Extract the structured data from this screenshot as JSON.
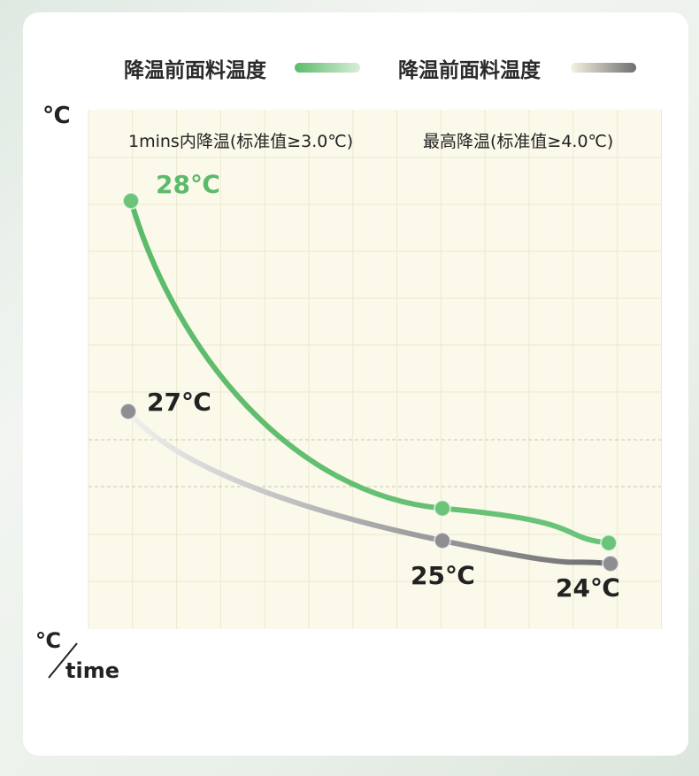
{
  "chart_data": {
    "type": "line",
    "legend": [
      {
        "label": "降温前面料温度",
        "color": "#5cbb6a"
      },
      {
        "label": "降温前面料温度",
        "color": "#6e6e72"
      }
    ],
    "legend_placement": "top",
    "annotations": [
      "1mins内降温(标准值≥3.0℃)",
      "最高降温(标准值≥4.0℃)"
    ],
    "ylabel": "℃",
    "xlabel": "℃/time",
    "xlabel_unit": "℃",
    "xlabel_text": "time",
    "grid": true,
    "series": [
      {
        "values": [
          28,
          25.5,
          24.9
        ],
        "labels": [
          "28℃",
          "",
          ""
        ],
        "color": "#5cbb6a"
      },
      {
        "values": [
          27,
          25,
          24
        ],
        "labels": [
          "27℃",
          "25℃",
          "24℃"
        ],
        "color": "#77777b"
      }
    ]
  }
}
